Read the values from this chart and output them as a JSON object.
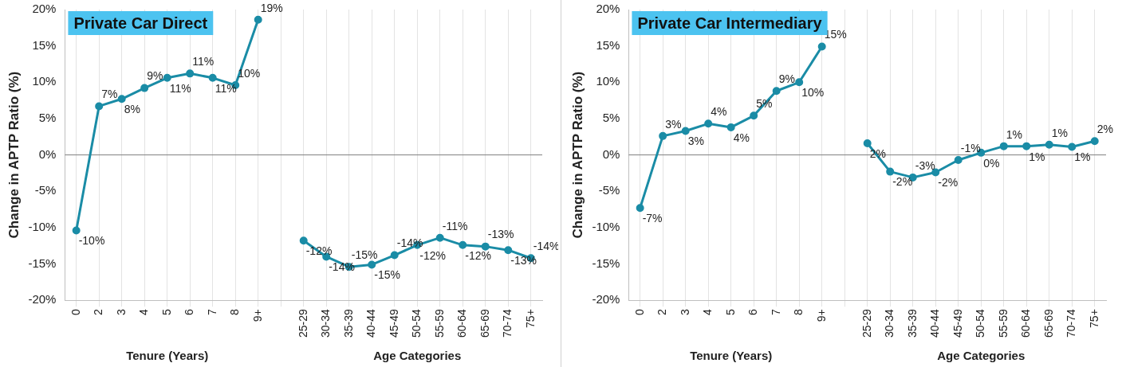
{
  "chart_data": [
    {
      "type": "line",
      "title": "Private Car Direct",
      "xlabel": "Tenure (Years)",
      "ylabel": "Change in APTP Ratio (%)",
      "annotations": [
        "Age Categories"
      ],
      "categories": [
        "0",
        "2",
        "3",
        "4",
        "5",
        "6",
        "7",
        "8",
        "9+",
        null,
        "25-29",
        "30-34",
        "35-39",
        "40-44",
        "45-49",
        "50-54",
        "55-59",
        "60-64",
        "65-69",
        "70-74",
        "75+"
      ],
      "series": [
        {
          "color": "#1a8ca6",
          "values": [
            -10.4,
            6.7,
            7.7,
            9.2,
            10.6,
            11.2,
            10.6,
            9.6,
            18.6,
            null,
            null,
            null,
            null,
            null,
            null,
            null,
            null,
            null,
            null,
            null,
            null
          ],
          "value_labels": [
            "-10%",
            "7%",
            "8%",
            "9%",
            "11%",
            "11%",
            "11%",
            "10%",
            "19%",
            null,
            null,
            null,
            null,
            null,
            null,
            null,
            null,
            null,
            null,
            null,
            null
          ]
        },
        {
          "color": "#1a8ca6",
          "values": [
            null,
            null,
            null,
            null,
            null,
            null,
            null,
            null,
            null,
            null,
            -11.8,
            -14.0,
            -15.4,
            -15.1,
            -13.8,
            -12.4,
            -11.4,
            -12.4,
            -12.6,
            -13.1,
            -14.2
          ],
          "value_labels": [
            null,
            null,
            null,
            null,
            null,
            null,
            null,
            null,
            null,
            null,
            "-12%",
            "-14%",
            "-15%",
            "-15%",
            "-14%",
            "-12%",
            "-11%",
            "-12%",
            "-13%",
            "-13%",
            "-14%"
          ]
        }
      ],
      "ylim": [
        -20,
        20
      ],
      "yticks": [
        {
          "value": -20,
          "label": "-20%"
        },
        {
          "value": -15,
          "label": "-15%"
        },
        {
          "value": -10,
          "label": "-10%"
        },
        {
          "value": -5,
          "label": "-5%"
        },
        {
          "value": 0,
          "label": "0%"
        },
        {
          "value": 5,
          "label": "5%"
        },
        {
          "value": 10,
          "label": "10%"
        },
        {
          "value": 15,
          "label": "15%"
        },
        {
          "value": 20,
          "label": "20%"
        }
      ],
      "ref_lines": [
        {
          "axis": "y",
          "value": 0,
          "color": "#7f7f7f"
        }
      ],
      "grid": "x",
      "legend": false,
      "marker": "circle",
      "line_style": "solid"
    },
    {
      "type": "line",
      "title": "Private Car Intermediary",
      "xlabel": "Tenure (Years)",
      "ylabel": "Change in APTP Ratio (%)",
      "annotations": [
        "Age Categories"
      ],
      "categories": [
        "0",
        "2",
        "3",
        "4",
        "5",
        "6",
        "7",
        "8",
        "9+",
        null,
        "25-29",
        "30-34",
        "35-39",
        "40-44",
        "45-49",
        "50-54",
        "55-59",
        "60-64",
        "65-69",
        "70-74",
        "75+"
      ],
      "series": [
        {
          "color": "#1a8ca6",
          "values": [
            -7.3,
            2.6,
            3.3,
            4.3,
            3.8,
            5.4,
            8.8,
            10.0,
            14.9,
            null,
            null,
            null,
            null,
            null,
            null,
            null,
            null,
            null,
            null,
            null,
            null
          ],
          "value_labels": [
            "-7%",
            "3%",
            "3%",
            "4%",
            "4%",
            "5%",
            "9%",
            "10%",
            "15%",
            null,
            null,
            null,
            null,
            null,
            null,
            null,
            null,
            null,
            null,
            null,
            null
          ]
        },
        {
          "color": "#1a8ca6",
          "values": [
            null,
            null,
            null,
            null,
            null,
            null,
            null,
            null,
            null,
            null,
            1.6,
            -2.3,
            -3.1,
            -2.4,
            -0.7,
            0.3,
            1.2,
            1.2,
            1.4,
            1.1,
            1.9
          ],
          "value_labels": [
            null,
            null,
            null,
            null,
            null,
            null,
            null,
            null,
            null,
            null,
            "2%",
            "-2%",
            "-3%",
            "-2%",
            "-1%",
            "0%",
            "1%",
            "1%",
            "1%",
            "1%",
            "2%"
          ]
        }
      ],
      "ylim": [
        -20,
        20
      ],
      "yticks": [
        {
          "value": -20,
          "label": "-20%"
        },
        {
          "value": -15,
          "label": "-15%"
        },
        {
          "value": -10,
          "label": "-10%"
        },
        {
          "value": -5,
          "label": "-5%"
        },
        {
          "value": 0,
          "label": "0%"
        },
        {
          "value": 5,
          "label": "5%"
        },
        {
          "value": 10,
          "label": "10%"
        },
        {
          "value": 15,
          "label": "15%"
        },
        {
          "value": 20,
          "label": "20%"
        }
      ],
      "ref_lines": [
        {
          "axis": "y",
          "value": 0,
          "color": "#7f7f7f"
        }
      ],
      "grid": "x",
      "legend": false,
      "marker": "circle",
      "line_style": "solid"
    }
  ]
}
